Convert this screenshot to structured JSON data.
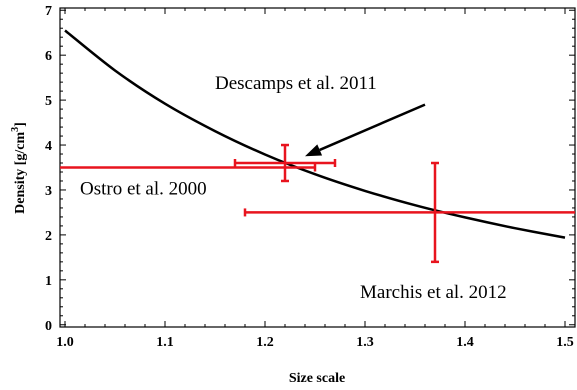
{
  "chart_data": {
    "type": "scatter",
    "xlabel": "Size scale",
    "ylabel": {
      "main": "Density  [g/cm",
      "sup": "3",
      "close": "]"
    },
    "xlim": [
      0.995,
      1.51
    ],
    "ylim": [
      -0.05,
      7.05
    ],
    "x_ticks": [
      1.0,
      1.1,
      1.2,
      1.3,
      1.4,
      1.5
    ],
    "x_tick_labels": [
      "1.0",
      "1.1",
      "1.2",
      "1.3",
      "1.4",
      "1.5"
    ],
    "y_ticks": [
      0,
      1,
      2,
      3,
      4,
      5,
      6,
      7
    ],
    "y_tick_labels": [
      "0",
      "1",
      "2",
      "3",
      "4",
      "5",
      "6",
      "7"
    ],
    "grid": false,
    "curve": {
      "color": "#000000",
      "description": "density scales inversely with size scale cubed",
      "x": [
        1.0,
        1.05,
        1.1,
        1.15,
        1.2,
        1.25,
        1.3,
        1.35,
        1.4,
        1.45,
        1.5
      ],
      "y": [
        6.55,
        5.66,
        4.92,
        4.31,
        3.79,
        3.35,
        2.98,
        2.66,
        2.39,
        2.15,
        1.94
      ]
    },
    "error_points": [
      {
        "x": 0.995,
        "y": 3.5,
        "x_low": 0.995,
        "x_high": 1.25,
        "y_low": 3.5,
        "y_high": 3.5,
        "label": "Ostro et al. 2000"
      },
      {
        "x": 1.22,
        "y": 3.6,
        "x_low": 1.17,
        "x_high": 1.27,
        "y_low": 3.2,
        "y_high": 4.0,
        "label": "Descamps et al. 2011"
      },
      {
        "x": 1.37,
        "y": 2.5,
        "x_low": 1.18,
        "x_high": 1.51,
        "y_low": 1.4,
        "y_high": 3.6,
        "label": "Marchis et al. 2012"
      }
    ],
    "error_color": "#e8141e",
    "annotations": [
      {
        "text": "Descamps et al. 2011",
        "x": 1.15,
        "y": 5.25,
        "arrow_from": [
          1.36,
          4.9
        ],
        "arrow_to": [
          1.24,
          3.75
        ]
      },
      {
        "text": "Ostro et al. 2000",
        "x": 1.015,
        "y": 2.9
      },
      {
        "text": "Marchis et al. 2012",
        "x": 1.295,
        "y": 0.6
      }
    ]
  }
}
